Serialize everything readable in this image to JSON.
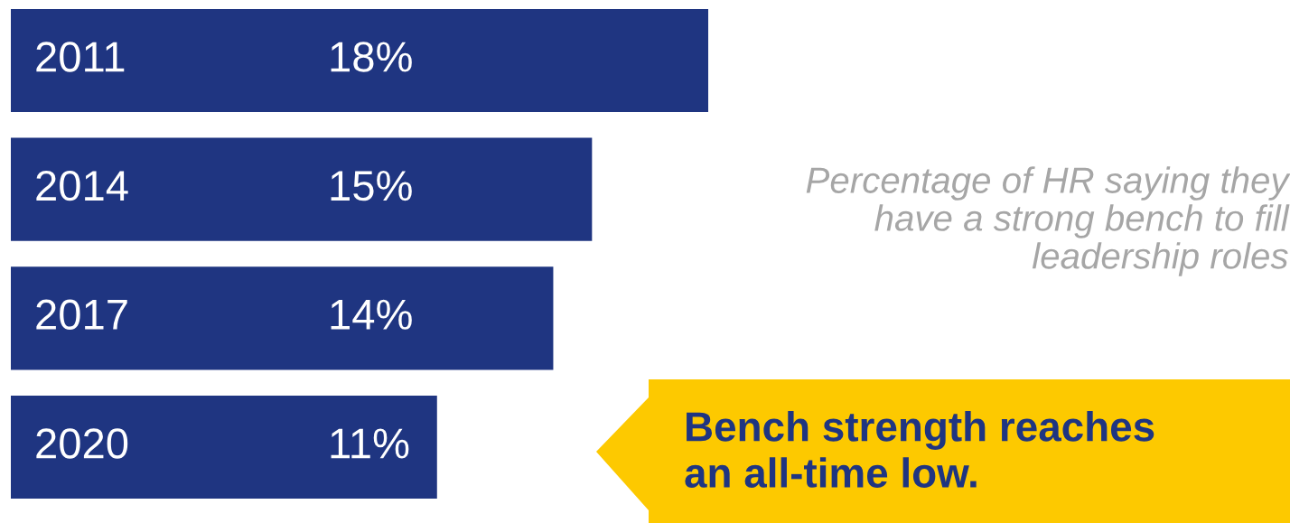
{
  "chart_data": {
    "type": "bar",
    "orientation": "horizontal",
    "categories": [
      "2011",
      "2014",
      "2017",
      "2020"
    ],
    "values": [
      18,
      15,
      14,
      11
    ],
    "value_labels": [
      "18%",
      "15%",
      "14%",
      "11%"
    ],
    "color": "#1f3581",
    "annotations": [
      "Percentage of HR saying they\nhave a strong bench to fill\nleadership roles",
      "Bench strength reaches\nan all-time low."
    ],
    "legend": false
  }
}
